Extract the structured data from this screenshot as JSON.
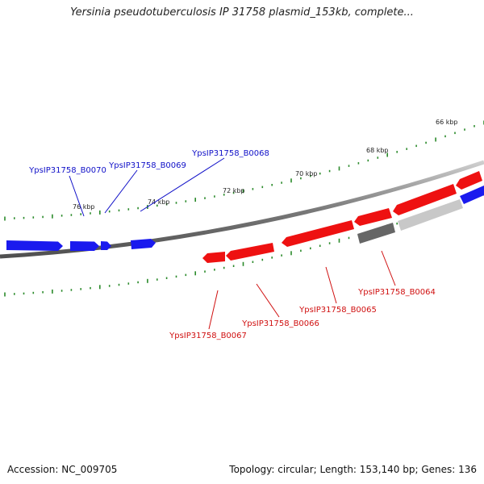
{
  "title": "Yersinia pseudotuberculosis IP 31758 plasmid_153kb, complete...",
  "footer": {
    "accession": "Accession: NC_009705",
    "summary": "Topology: circular; Length: 153,140 bp; Genes: 136"
  },
  "colors": {
    "plus_strand": "#1a1aee",
    "minus_strand": "#ee1111",
    "plus_label": "#1010c8",
    "minus_label": "#d01010",
    "gray_feature": "#777777",
    "light_feature": "#cccccc",
    "backbone": "#7a7a7a",
    "ticks": "#2a8a2a"
  },
  "scale_labels": [
    "76 kbp",
    "74 kbp",
    "72 kbp",
    "70 kbp",
    "68 kbp",
    "66 kbp"
  ],
  "gene_labels": {
    "plus": [
      "YpsIP31758_B0070",
      "YpsIP31758_B0069",
      "YpsIP31758_B0068"
    ],
    "minus": [
      "YpsIP31758_B0064",
      "YpsIP31758_B0065",
      "YpsIP31758_B0066",
      "YpsIP31758_B0067"
    ]
  }
}
